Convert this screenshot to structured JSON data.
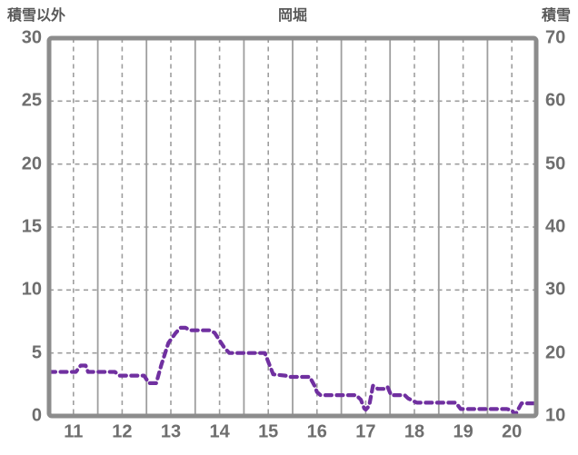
{
  "header": {
    "left_axis_title": "積雪以外",
    "chart_title": "岡堀",
    "right_axis_title": "積雪"
  },
  "colors": {
    "line": "#7030A0",
    "frame": "#8C8C8C",
    "grid": "#9E9E9E",
    "header_text": "#595959",
    "tick_text": "#6E6E6E",
    "background": "#FFFFFF"
  },
  "chart_data": {
    "type": "line",
    "title": "岡堀",
    "left_axis": {
      "label": "積雪以外",
      "min": 0,
      "max": 30,
      "ticks": [
        0,
        5,
        10,
        15,
        20,
        25,
        30
      ]
    },
    "right_axis": {
      "label": "積雪",
      "min": 10,
      "max": 70,
      "ticks": [
        10,
        20,
        30,
        40,
        50,
        60,
        70
      ]
    },
    "x_axis": {
      "min": 10.5,
      "max": 20.5,
      "ticks": [
        11,
        12,
        13,
        14,
        15,
        16,
        17,
        18,
        19,
        20
      ]
    },
    "grid": {
      "horizontal_dashed": [
        5,
        10,
        15,
        20,
        25
      ],
      "vertical_dashed": [
        11,
        12,
        13,
        14,
        15,
        16,
        17,
        18,
        19,
        20
      ],
      "vertical_solid": [
        11.5,
        12.5,
        13.5,
        14.5,
        15.5,
        16.5,
        17.5,
        18.5,
        19.5
      ]
    },
    "legend": "none",
    "series": [
      {
        "name": "積雪以外",
        "axis": "left",
        "style": "dashed",
        "color": "#7030A0",
        "points": [
          [
            10.5,
            3.5
          ],
          [
            11.05,
            3.5
          ],
          [
            11.15,
            4.0
          ],
          [
            11.25,
            4.0
          ],
          [
            11.3,
            3.5
          ],
          [
            11.85,
            3.5
          ],
          [
            11.95,
            3.2
          ],
          [
            12.45,
            3.2
          ],
          [
            12.55,
            2.6
          ],
          [
            12.7,
            2.6
          ],
          [
            12.8,
            4.0
          ],
          [
            12.95,
            5.8
          ],
          [
            13.1,
            6.6
          ],
          [
            13.2,
            7.0
          ],
          [
            13.3,
            7.0
          ],
          [
            13.4,
            6.8
          ],
          [
            13.8,
            6.8
          ],
          [
            13.9,
            6.6
          ],
          [
            14.1,
            5.4
          ],
          [
            14.2,
            5.0
          ],
          [
            14.93,
            5.0
          ],
          [
            15.1,
            3.3
          ],
          [
            15.35,
            3.2
          ],
          [
            15.45,
            3.1
          ],
          [
            15.85,
            3.1
          ],
          [
            15.95,
            2.4
          ],
          [
            16.0,
            1.9
          ],
          [
            16.07,
            1.65
          ],
          [
            16.8,
            1.65
          ],
          [
            16.9,
            1.3
          ],
          [
            16.97,
            0.6
          ],
          [
            17.0,
            0.5
          ],
          [
            17.07,
            0.8
          ],
          [
            17.15,
            2.4
          ],
          [
            17.25,
            2.15
          ],
          [
            17.4,
            2.15
          ],
          [
            17.45,
            2.3
          ],
          [
            17.52,
            1.65
          ],
          [
            17.8,
            1.65
          ],
          [
            17.87,
            1.4
          ],
          [
            17.97,
            1.2
          ],
          [
            18.05,
            1.05
          ],
          [
            18.85,
            1.05
          ],
          [
            18.95,
            0.55
          ],
          [
            19.9,
            0.55
          ],
          [
            20.0,
            0.45
          ],
          [
            20.07,
            0.1
          ],
          [
            20.2,
            1.0
          ],
          [
            20.45,
            1.0
          ]
        ]
      }
    ]
  }
}
